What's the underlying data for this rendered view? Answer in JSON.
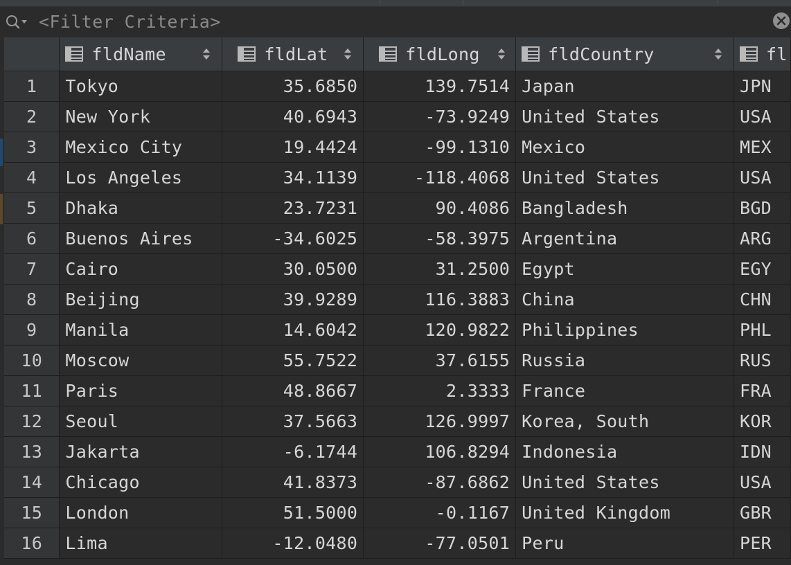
{
  "filter": {
    "placeholder": "<Filter Criteria>"
  },
  "columns": [
    {
      "label": "fldName",
      "align": "left"
    },
    {
      "label": "fldLat",
      "align": "right"
    },
    {
      "label": "fldLong",
      "align": "right"
    },
    {
      "label": "fldCountry",
      "align": "left"
    },
    {
      "label": "fl",
      "align": "left"
    }
  ],
  "rows": [
    {
      "num": "1",
      "name": "Tokyo",
      "lat": "35.6850",
      "long": "139.7514",
      "country": "Japan",
      "iso": "JPN"
    },
    {
      "num": "2",
      "name": "New York",
      "lat": "40.6943",
      "long": "-73.9249",
      "country": "United States",
      "iso": "USA"
    },
    {
      "num": "3",
      "name": "Mexico City",
      "lat": "19.4424",
      "long": "-99.1310",
      "country": "Mexico",
      "iso": "MEX"
    },
    {
      "num": "4",
      "name": "Los Angeles",
      "lat": "34.1139",
      "long": "-118.4068",
      "country": "United States",
      "iso": "USA"
    },
    {
      "num": "5",
      "name": "Dhaka",
      "lat": "23.7231",
      "long": "90.4086",
      "country": "Bangladesh",
      "iso": "BGD"
    },
    {
      "num": "6",
      "name": "Buenos Aires",
      "lat": "-34.6025",
      "long": "-58.3975",
      "country": "Argentina",
      "iso": "ARG"
    },
    {
      "num": "7",
      "name": "Cairo",
      "lat": "30.0500",
      "long": "31.2500",
      "country": "Egypt",
      "iso": "EGY"
    },
    {
      "num": "8",
      "name": "Beijing",
      "lat": "39.9289",
      "long": "116.3883",
      "country": "China",
      "iso": "CHN"
    },
    {
      "num": "9",
      "name": "Manila",
      "lat": "14.6042",
      "long": "120.9822",
      "country": "Philippines",
      "iso": "PHL"
    },
    {
      "num": "10",
      "name": "Moscow",
      "lat": "55.7522",
      "long": "37.6155",
      "country": "Russia",
      "iso": "RUS"
    },
    {
      "num": "11",
      "name": "Paris",
      "lat": "48.8667",
      "long": "2.3333",
      "country": "France",
      "iso": "FRA"
    },
    {
      "num": "12",
      "name": "Seoul",
      "lat": "37.5663",
      "long": "126.9997",
      "country": "Korea, South",
      "iso": "KOR"
    },
    {
      "num": "13",
      "name": "Jakarta",
      "lat": "-6.1744",
      "long": "106.8294",
      "country": "Indonesia",
      "iso": "IDN"
    },
    {
      "num": "14",
      "name": "Chicago",
      "lat": "41.8373",
      "long": "-87.6862",
      "country": "United States",
      "iso": "USA"
    },
    {
      "num": "15",
      "name": "London",
      "lat": "51.5000",
      "long": "-0.1167",
      "country": "United Kingdom",
      "iso": "GBR"
    },
    {
      "num": "16",
      "name": "Lima",
      "lat": "-12.0480",
      "long": "-77.0501",
      "country": "Peru",
      "iso": "PER"
    }
  ],
  "icons": {
    "filter": "search-filter-icon",
    "clear": "clear-icon",
    "column": "table-column-icon",
    "sort": "sort-icon"
  },
  "colors": {
    "background": "#2b2b2b",
    "header": "#3a3d40",
    "rownum": "#333537",
    "text": "#d6d6d6",
    "placeholder": "#8a8a8a"
  }
}
